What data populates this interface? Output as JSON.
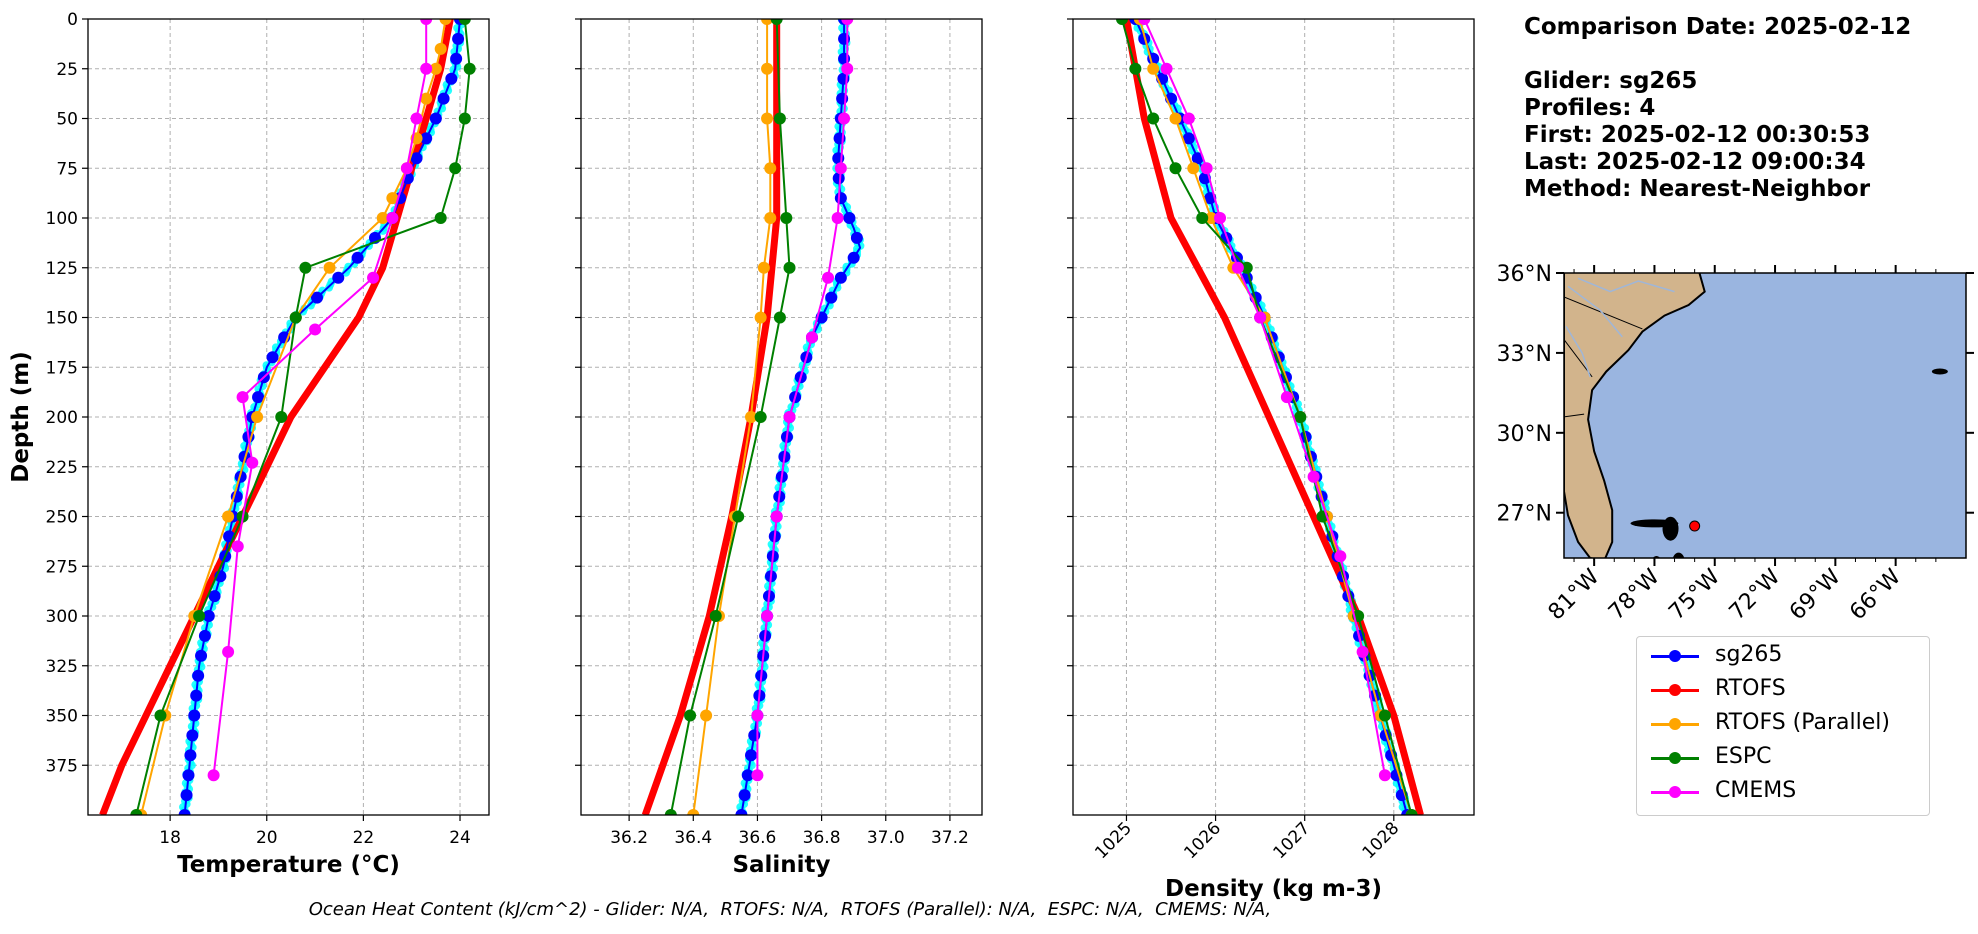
{
  "info": {
    "comparison_date": "Comparison Date: 2025-02-12",
    "glider": "Glider: sg265",
    "profiles": "Profiles: 4",
    "first": "First: 2025-02-12 00:30:53",
    "last": "Last: 2025-02-12 09:00:34",
    "method": "Method: Nearest-Neighbor"
  },
  "footer": "Ocean Heat Content (kJ/cm^2) - Glider: N/A,  RTOFS: N/A,  RTOFS (Parallel): N/A,  ESPC: N/A,  CMEMS: N/A,",
  "legend": [
    {
      "label": "sg265",
      "color": "#0000ff"
    },
    {
      "label": "RTOFS",
      "color": "#ff0000"
    },
    {
      "label": "RTOFS (Parallel)",
      "color": "#ffa500"
    },
    {
      "label": "ESPC",
      "color": "#008000"
    },
    {
      "label": "CMEMS",
      "color": "#ff00ff"
    }
  ],
  "chart_data": [
    {
      "type": "line",
      "xlabel": "Temperature (°C)",
      "ylabel": "Depth (m)",
      "xlim": [
        16.3,
        24.6
      ],
      "ylim": [
        400,
        0
      ],
      "xticks": [
        18,
        20,
        22,
        24
      ],
      "yticks": [
        0,
        25,
        50,
        75,
        100,
        125,
        150,
        175,
        200,
        225,
        250,
        275,
        300,
        325,
        350,
        375
      ],
      "grid": true,
      "glider_raw_color": "#00ffff",
      "series": [
        {
          "name": "sg265",
          "color": "#0000ff",
          "marker": true,
          "width": 2,
          "points": [
            [
              24.0,
              0
            ],
            [
              23.9,
              25
            ],
            [
              23.5,
              50
            ],
            [
              23.0,
              75
            ],
            [
              22.6,
              100
            ],
            [
              21.7,
              125
            ],
            [
              20.6,
              150
            ],
            [
              20.0,
              175
            ],
            [
              19.7,
              200
            ],
            [
              19.5,
              225
            ],
            [
              19.3,
              250
            ],
            [
              19.1,
              275
            ],
            [
              18.8,
              300
            ],
            [
              18.6,
              325
            ],
            [
              18.5,
              350
            ],
            [
              18.4,
              375
            ],
            [
              18.3,
              400
            ]
          ]
        },
        {
          "name": "RTOFS",
          "color": "#ff0000",
          "marker": false,
          "width": 7,
          "points": [
            [
              23.8,
              0
            ],
            [
              23.6,
              25
            ],
            [
              23.3,
              50
            ],
            [
              23.0,
              75
            ],
            [
              22.7,
              100
            ],
            [
              22.4,
              125
            ],
            [
              21.9,
              150
            ],
            [
              21.2,
              175
            ],
            [
              20.5,
              200
            ],
            [
              20.0,
              225
            ],
            [
              19.5,
              250
            ],
            [
              19.0,
              275
            ],
            [
              18.5,
              300
            ],
            [
              18.0,
              325
            ],
            [
              17.5,
              350
            ],
            [
              17.0,
              375
            ],
            [
              16.6,
              400
            ]
          ]
        },
        {
          "name": "RTOFS (Parallel)",
          "color": "#ffa500",
          "marker": true,
          "width": 2,
          "points": [
            [
              23.7,
              0
            ],
            [
              23.6,
              15
            ],
            [
              23.5,
              25
            ],
            [
              23.3,
              40
            ],
            [
              23.1,
              60
            ],
            [
              22.9,
              75
            ],
            [
              22.6,
              90
            ],
            [
              22.4,
              100
            ],
            [
              21.3,
              125
            ],
            [
              20.6,
              150
            ],
            [
              19.8,
              200
            ],
            [
              19.2,
              250
            ],
            [
              18.5,
              300
            ],
            [
              17.9,
              350
            ],
            [
              17.4,
              400
            ]
          ]
        },
        {
          "name": "ESPC",
          "color": "#008000",
          "marker": true,
          "width": 2,
          "points": [
            [
              24.1,
              0
            ],
            [
              24.2,
              25
            ],
            [
              24.1,
              50
            ],
            [
              23.9,
              75
            ],
            [
              23.6,
              100
            ],
            [
              20.8,
              125
            ],
            [
              20.6,
              150
            ],
            [
              20.3,
              200
            ],
            [
              19.5,
              250
            ],
            [
              18.6,
              300
            ],
            [
              17.8,
              350
            ],
            [
              17.3,
              400
            ]
          ]
        },
        {
          "name": "CMEMS",
          "color": "#ff00ff",
          "marker": true,
          "width": 2,
          "points": [
            [
              23.3,
              0
            ],
            [
              23.3,
              25
            ],
            [
              23.1,
              50
            ],
            [
              22.9,
              75
            ],
            [
              22.6,
              100
            ],
            [
              22.2,
              130
            ],
            [
              21.0,
              156
            ],
            [
              19.5,
              190
            ],
            [
              19.7,
              223
            ],
            [
              19.4,
              265
            ],
            [
              19.2,
              318
            ],
            [
              18.9,
              380
            ]
          ]
        }
      ]
    },
    {
      "type": "line",
      "xlabel": "Salinity",
      "ylabel": "",
      "xlim": [
        36.05,
        37.3
      ],
      "ylim": [
        400,
        0
      ],
      "xticks": [
        36.2,
        36.4,
        36.6,
        36.8,
        37.0,
        37.2
      ],
      "yticks": [
        0,
        25,
        50,
        75,
        100,
        125,
        150,
        175,
        200,
        225,
        250,
        275,
        300,
        325,
        350,
        375
      ],
      "grid": true,
      "glider_raw_color": "#00ffff",
      "series": [
        {
          "name": "sg265",
          "color": "#0000ff",
          "marker": true,
          "width": 2,
          "points": [
            [
              36.87,
              0
            ],
            [
              36.87,
              25
            ],
            [
              36.86,
              50
            ],
            [
              36.85,
              75
            ],
            [
              36.86,
              90
            ],
            [
              36.9,
              105
            ],
            [
              36.92,
              115
            ],
            [
              36.86,
              130
            ],
            [
              36.77,
              160
            ],
            [
              36.7,
              200
            ],
            [
              36.66,
              250
            ],
            [
              36.63,
              300
            ],
            [
              36.6,
              350
            ],
            [
              36.55,
              400
            ]
          ]
        },
        {
          "name": "RTOFS",
          "color": "#ff0000",
          "marker": false,
          "width": 7,
          "points": [
            [
              36.66,
              0
            ],
            [
              36.66,
              50
            ],
            [
              36.66,
              100
            ],
            [
              36.63,
              150
            ],
            [
              36.58,
              200
            ],
            [
              36.52,
              250
            ],
            [
              36.45,
              300
            ],
            [
              36.36,
              350
            ],
            [
              36.25,
              400
            ]
          ]
        },
        {
          "name": "RTOFS (Parallel)",
          "color": "#ffa500",
          "marker": true,
          "width": 2,
          "points": [
            [
              36.63,
              0
            ],
            [
              36.63,
              25
            ],
            [
              36.63,
              50
            ],
            [
              36.64,
              75
            ],
            [
              36.64,
              100
            ],
            [
              36.62,
              125
            ],
            [
              36.61,
              150
            ],
            [
              36.58,
              200
            ],
            [
              36.53,
              250
            ],
            [
              36.48,
              300
            ],
            [
              36.44,
              350
            ],
            [
              36.4,
              400
            ]
          ]
        },
        {
          "name": "ESPC",
          "color": "#008000",
          "marker": true,
          "width": 2,
          "points": [
            [
              36.66,
              0
            ],
            [
              36.67,
              50
            ],
            [
              36.69,
              100
            ],
            [
              36.7,
              125
            ],
            [
              36.67,
              150
            ],
            [
              36.61,
              200
            ],
            [
              36.54,
              250
            ],
            [
              36.47,
              300
            ],
            [
              36.39,
              350
            ],
            [
              36.33,
              400
            ]
          ]
        },
        {
          "name": "CMEMS",
          "color": "#ff00ff",
          "marker": true,
          "width": 2,
          "points": [
            [
              36.88,
              0
            ],
            [
              36.88,
              25
            ],
            [
              36.87,
              50
            ],
            [
              36.86,
              75
            ],
            [
              36.85,
              100
            ],
            [
              36.82,
              130
            ],
            [
              36.77,
              160
            ],
            [
              36.7,
              200
            ],
            [
              36.66,
              250
            ],
            [
              36.63,
              300
            ],
            [
              36.6,
              350
            ],
            [
              36.6,
              380
            ]
          ]
        }
      ]
    },
    {
      "type": "line",
      "xlabel": "Density (kg m-3)",
      "ylabel": "",
      "xlim": [
        1024.4,
        1028.9
      ],
      "ylim": [
        400,
        0
      ],
      "xticks": [
        1025,
        1026,
        1027,
        1028
      ],
      "yticks": [
        0,
        25,
        50,
        75,
        100,
        125,
        150,
        175,
        200,
        225,
        250,
        275,
        300,
        325,
        350,
        375
      ],
      "grid": true,
      "glider_raw_color": "#00ffff",
      "series": [
        {
          "name": "sg265",
          "color": "#0000ff",
          "marker": true,
          "width": 2,
          "points": [
            [
              1025.1,
              0
            ],
            [
              1025.35,
              25
            ],
            [
              1025.6,
              50
            ],
            [
              1025.85,
              75
            ],
            [
              1026.0,
              100
            ],
            [
              1026.3,
              125
            ],
            [
              1026.55,
              150
            ],
            [
              1026.75,
              175
            ],
            [
              1026.95,
              200
            ],
            [
              1027.1,
              225
            ],
            [
              1027.25,
              250
            ],
            [
              1027.4,
              275
            ],
            [
              1027.55,
              300
            ],
            [
              1027.7,
              325
            ],
            [
              1027.85,
              350
            ],
            [
              1028.0,
              375
            ],
            [
              1028.15,
              400
            ]
          ]
        },
        {
          "name": "RTOFS",
          "color": "#ff0000",
          "marker": false,
          "width": 7,
          "points": [
            [
              1025.0,
              0
            ],
            [
              1025.2,
              50
            ],
            [
              1025.5,
              100
            ],
            [
              1025.8,
              125
            ],
            [
              1026.1,
              150
            ],
            [
              1026.35,
              175
            ],
            [
              1026.6,
              200
            ],
            [
              1026.85,
              225
            ],
            [
              1027.1,
              250
            ],
            [
              1027.35,
              275
            ],
            [
              1027.6,
              300
            ],
            [
              1027.8,
              325
            ],
            [
              1028.0,
              350
            ],
            [
              1028.15,
              375
            ],
            [
              1028.3,
              400
            ]
          ]
        },
        {
          "name": "RTOFS (Parallel)",
          "color": "#ffa500",
          "marker": true,
          "width": 2,
          "points": [
            [
              1025.15,
              0
            ],
            [
              1025.3,
              25
            ],
            [
              1025.55,
              50
            ],
            [
              1025.75,
              75
            ],
            [
              1025.95,
              100
            ],
            [
              1026.2,
              125
            ],
            [
              1026.55,
              150
            ],
            [
              1026.95,
              200
            ],
            [
              1027.25,
              250
            ],
            [
              1027.55,
              300
            ],
            [
              1027.85,
              350
            ],
            [
              1028.2,
              400
            ]
          ]
        },
        {
          "name": "ESPC",
          "color": "#008000",
          "marker": true,
          "width": 2,
          "points": [
            [
              1024.95,
              0
            ],
            [
              1025.1,
              25
            ],
            [
              1025.3,
              50
            ],
            [
              1025.55,
              75
            ],
            [
              1025.85,
              100
            ],
            [
              1026.35,
              125
            ],
            [
              1026.5,
              150
            ],
            [
              1026.95,
              200
            ],
            [
              1027.2,
              250
            ],
            [
              1027.6,
              300
            ],
            [
              1027.9,
              350
            ],
            [
              1028.2,
              400
            ]
          ]
        },
        {
          "name": "CMEMS",
          "color": "#ff00ff",
          "marker": true,
          "width": 2,
          "points": [
            [
              1025.2,
              0
            ],
            [
              1025.45,
              25
            ],
            [
              1025.7,
              50
            ],
            [
              1025.9,
              75
            ],
            [
              1026.05,
              100
            ],
            [
              1026.25,
              125
            ],
            [
              1026.5,
              150
            ],
            [
              1026.8,
              190
            ],
            [
              1027.1,
              230
            ],
            [
              1027.4,
              270
            ],
            [
              1027.65,
              318
            ],
            [
              1027.9,
              380
            ]
          ]
        }
      ]
    }
  ],
  "map": {
    "lat_labels": [
      "36°N",
      "33°N",
      "30°N",
      "27°N"
    ],
    "lon_labels": [
      "81°W",
      "78°W",
      "75°W",
      "72°W",
      "69°W",
      "66°W"
    ],
    "land_color": "#d2b48c",
    "ocean_color": "#9ab5e0",
    "glider_marker_color": "#ff0000"
  }
}
